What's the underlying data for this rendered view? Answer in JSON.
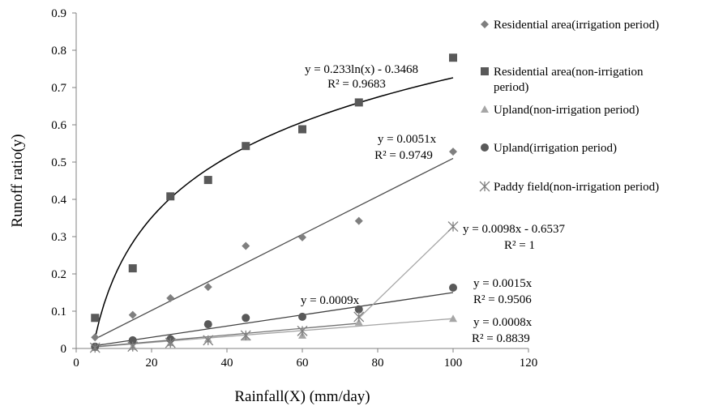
{
  "chart_data": {
    "type": "scatter",
    "xlabel": "Rainfall(X) (mm/day)",
    "ylabel": "Runoff ratio(y)",
    "xlim": [
      0,
      120
    ],
    "ylim": [
      0,
      0.9
    ],
    "x_ticks": [
      "0",
      "20",
      "40",
      "60",
      "80",
      "100",
      "120"
    ],
    "y_ticks": [
      "0",
      "0.1",
      "0.2",
      "0.3",
      "0.4",
      "0.5",
      "0.6",
      "0.7",
      "0.8",
      "0.9"
    ],
    "grid": false,
    "legend_position": "right",
    "series": [
      {
        "name": "Residential area(irrigation period)",
        "marker": "diamond",
        "color": "#7f7f7f",
        "x": [
          5,
          15,
          25,
          35,
          45,
          60,
          75,
          100
        ],
        "y": [
          0.03,
          0.09,
          0.135,
          0.165,
          0.275,
          0.298,
          0.342,
          0.528
        ],
        "trendline": {
          "kind": "linear",
          "slope": 0.0051,
          "intercept": 0,
          "x_range": [
            5,
            100
          ],
          "color": "#4d4d4d"
        },
        "equation": "y = 0.0051x",
        "r2": "R² = 0.9749"
      },
      {
        "name": "Residential area(non-irrigation period)",
        "marker": "square",
        "color": "#595959",
        "x": [
          5,
          15,
          25,
          35,
          45,
          60,
          75,
          100
        ],
        "y": [
          0.082,
          0.215,
          0.408,
          0.452,
          0.543,
          0.588,
          0.66,
          0.78
        ],
        "trendline": {
          "kind": "log",
          "a": 0.233,
          "b": -0.3468,
          "x_range": [
            5,
            100
          ],
          "color": "#000000"
        },
        "equation": "y = 0.233ln(x) - 0.3468",
        "r2": "R² = 0.9683"
      },
      {
        "name": "Upland(non-irrigation period)",
        "marker": "triangle",
        "color": "#a6a6a6",
        "x": [
          5,
          15,
          25,
          35,
          45,
          60,
          75,
          100
        ],
        "y": [
          0.002,
          0.005,
          0.015,
          0.025,
          0.03,
          0.035,
          0.07,
          0.08
        ],
        "trendline": {
          "kind": "linear",
          "slope": 0.0008,
          "intercept": 0,
          "x_range": [
            5,
            100
          ],
          "color": "#a6a6a6"
        },
        "equation": "y = 0.0008x",
        "r2": "R² = 0.8839"
      },
      {
        "name": "Upland(irrigation period)",
        "marker": "circle",
        "color": "#595959",
        "x": [
          5,
          15,
          25,
          35,
          45,
          60,
          75,
          100
        ],
        "y": [
          0.005,
          0.022,
          0.025,
          0.065,
          0.082,
          0.085,
          0.105,
          0.163
        ],
        "trendline": {
          "kind": "linear",
          "slope": 0.0015,
          "intercept": 0,
          "x_range": [
            5,
            100
          ],
          "color": "#404040"
        },
        "equation": "y = 0.0015x",
        "r2": "R² = 0.9506"
      },
      {
        "name": "Paddy field(non-irrigation period)",
        "marker": "star",
        "color": "#7f7f7f",
        "x": [
          5,
          15,
          25,
          35,
          45,
          60,
          75,
          100
        ],
        "y": [
          0.002,
          0.005,
          0.015,
          0.022,
          0.035,
          0.047,
          0.085,
          0.327
        ],
        "trendline": {
          "kind": "linear",
          "slope": 0.0009,
          "intercept": 0,
          "x_range": [
            5,
            75
          ],
          "color": "#737373"
        },
        "equation": "y = 0.0009x",
        "r2": "",
        "extra_trendline": {
          "kind": "linear",
          "slope": 0.0098,
          "intercept": -0.6537,
          "x_range": [
            75,
            100
          ],
          "color": "#a6a6a6"
        },
        "extra_equation": "y = 0.0098x - 0.6537",
        "extra_r2": "R² = 1"
      }
    ]
  }
}
